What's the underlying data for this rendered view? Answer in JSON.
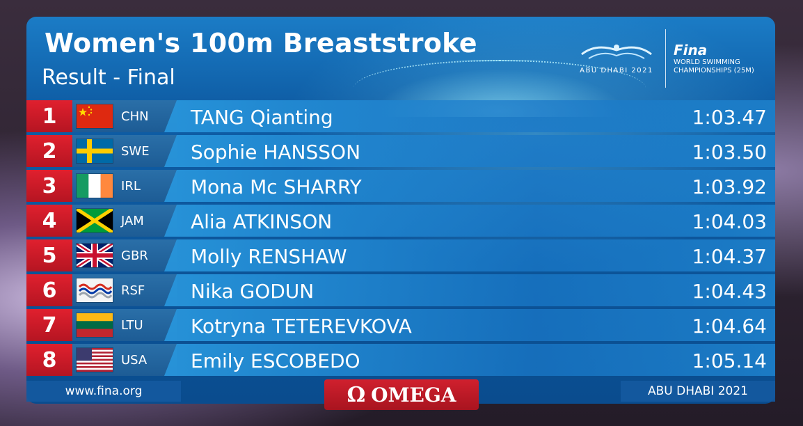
{
  "header": {
    "title": "Women's 100m Breaststroke",
    "subtitle": "Result - Final",
    "event_logo_text": "ABU DHABI 2021",
    "fina_wordmark": "Fina",
    "fina_subtitle": "WORLD SWIMMING CHAMPIONSHIPS (25M)"
  },
  "results": [
    {
      "rank": "1",
      "noc": "CHN",
      "name": "TANG Qianting",
      "time": "1:03.47",
      "flag": "flag-china"
    },
    {
      "rank": "2",
      "noc": "SWE",
      "name": "Sophie HANSSON",
      "time": "1:03.50",
      "flag": "flag-sweden"
    },
    {
      "rank": "3",
      "noc": "IRL",
      "name": "Mona Mc SHARRY",
      "time": "1:03.92",
      "flag": "flag-ireland"
    },
    {
      "rank": "4",
      "noc": "JAM",
      "name": "Alia ATKINSON",
      "time": "1:04.03",
      "flag": "flag-jamaica"
    },
    {
      "rank": "5",
      "noc": "GBR",
      "name": "Molly RENSHAW",
      "time": "1:04.37",
      "flag": "flag-great-britain"
    },
    {
      "rank": "6",
      "noc": "RSF",
      "name": "Nika GODUN",
      "time": "1:04.43",
      "flag": "flag-rsf"
    },
    {
      "rank": "7",
      "noc": "LTU",
      "name": "Kotryna TETEREVKOVA",
      "time": "1:04.64",
      "flag": "flag-lithuania"
    },
    {
      "rank": "8",
      "noc": "USA",
      "name": "Emily ESCOBEDO",
      "time": "1:05.14",
      "flag": "flag-usa"
    }
  ],
  "footer": {
    "url": "www.fina.org",
    "sponsor": "OMEGA",
    "sponsor_symbol": "Ω",
    "city": "ABU DHABI 2021"
  },
  "colors": {
    "rank_red": "#d0202e",
    "board_blue": "#0f5ea6",
    "row_blue": "#2896dc"
  }
}
